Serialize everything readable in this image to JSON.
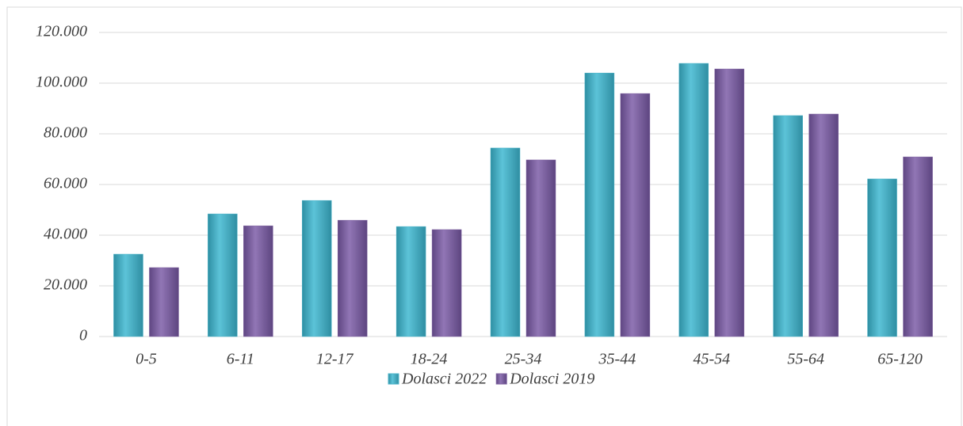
{
  "chart_data": {
    "type": "bar",
    "categories": [
      "0-5",
      "6-11",
      "12-17",
      "18-24",
      "25-34",
      "35-44",
      "45-54",
      "55-64",
      "65-120"
    ],
    "series": [
      {
        "name": "Dolasci 2022",
        "color": "#4bb3c8",
        "values": [
          32500,
          48400,
          53700,
          43400,
          74400,
          104000,
          107800,
          87200,
          62200
        ]
      },
      {
        "name": "Dolasci 2019",
        "color": "#8064a2",
        "values": [
          27200,
          43700,
          45900,
          42200,
          69700,
          95900,
          105600,
          87800,
          70900
        ]
      }
    ],
    "ylim": [
      0,
      120000
    ],
    "yticks": [
      0,
      {
        "value": 20000,
        "label": "20.000"
      },
      {
        "value": 40000,
        "label": "40.000"
      },
      {
        "value": 60000,
        "label": "60.000"
      },
      {
        "value": 80000,
        "label": "80.000"
      },
      {
        "value": 100000,
        "label": "100.000"
      },
      {
        "value": 120000,
        "label": "120.000"
      }
    ],
    "grid": true,
    "legend": "bottom"
  }
}
